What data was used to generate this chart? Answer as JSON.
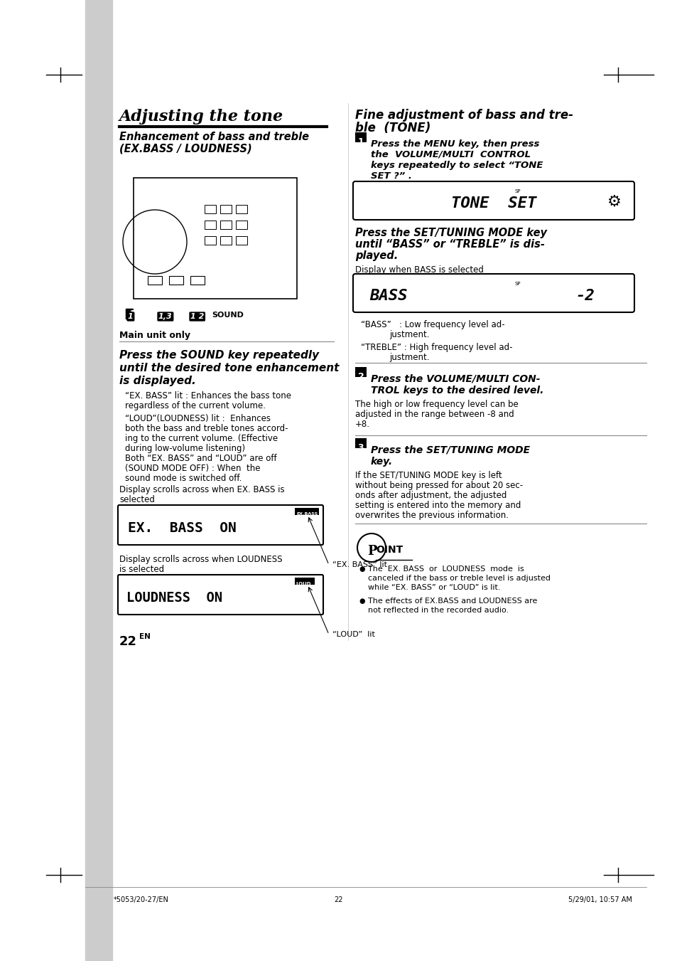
{
  "page_bg": "#ffffff",
  "left_bar_color": "#cccccc",
  "title_main": "Adjusting the tone",
  "title_sub1": "Enhancement of bass and treble\n(EX.BASS / LOUDNESS)",
  "title_right": "Fine adjustment of bass and tre-\nble  (TONE)",
  "step1_right": "1  Press the MENU key, then press\n    the  VOLUME/MULTI  CONTROL\n    keys repeatedly to select “TONE\n    SET ?” .",
  "tone_set_display": "TONE  SET",
  "step_set_tuning": "Press the SET/TUNING MODE key\nuntil “BASS” or “TREBLE” is dis-\nplayed.",
  "display_when_bass": "Display when BASS is selected",
  "bass_display": "BASS          -2",
  "bass_desc1": "“BASS”   : Low frequency level ad-\n              justment.",
  "bass_desc2": "“TREBLE” : High frequency level ad-\n              justment.",
  "step2_right": "2  Press the VOLUME/MULTI CON-\n    TROL keys to the desired level.",
  "step2_body": "The high or low frequency level can be\nadjusted in the range between -8 and\n+8.",
  "step3_right": "3  Press the SET/TUNING MODE\n    key.",
  "step3_body": "If the SET/TUNING MODE key is left\nwithout being pressed for about 20 sec-\nonds after adjustment, the adjusted\nsetting is entered into the memory and\noverwrites the previous information.",
  "main_unit_only": "Main unit only",
  "press_sound_key": "Press the SOUND key repeatedly\nuntil the desired tone enhancement\nis displayed.",
  "ex_bass_lit": "“EX. BASS” lit : Enhances the bass tone\n  regardless of the current volume.",
  "loud_lit": "“LOUD”(LOUDNESS) lit : Enhances\n  both the bass and treble tones accord-\n  ing to the current volume. (Effective\n  during low-volume listening)",
  "both_off": "Both “EX. BASS” and “LOUD” are off\n  (SOUND MODE OFF) : When the\n  sound mode is switched off.",
  "display_ex_bass": "Display scrolls across when EX. BASS is\nselected",
  "ex_bass_display": "EX.  BASS  ON",
  "ex_bass_lit_label": "“EX. BASS” lit",
  "display_loudness": "Display scrolls across when LOUDNESS\nis selected",
  "loudness_display": "LOUDNESS  ON",
  "loud_label": "“LOUD”  lit",
  "page_num": "22",
  "page_num_sup": "EN",
  "point_title": "POINT",
  "point1": "The  EX. BASS  or  LOUDNESS  mode  is\ncanceled if the bass or treble level is adjusted\nwhile “EX. BASS” or “LOUD” is lit.",
  "point2": "The effects of EX.BASS and LOUDNESS are\nnot reflected in the recorded audio.",
  "footer_left": "*5053/20-27/EN",
  "footer_mid": "22",
  "footer_right": "5/29/01, 10:57 AM"
}
